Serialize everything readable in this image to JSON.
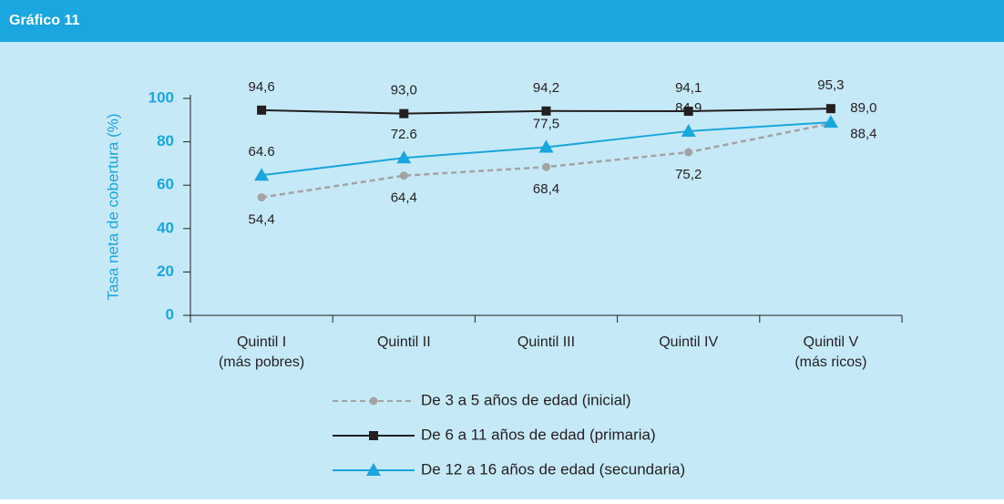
{
  "header": {
    "title": "Gráfico 11"
  },
  "chart_data": {
    "type": "line",
    "y_label": "Tasa neta de cobertura (%)",
    "categories": [
      [
        "Quintil I",
        "(más pobres)"
      ],
      [
        "Quintil II"
      ],
      [
        "Quintil III"
      ],
      [
        "Quintil IV"
      ],
      [
        "Quintil V",
        "(más ricos)"
      ]
    ],
    "ylim": [
      0,
      100
    ],
    "yticks": [
      0,
      20,
      40,
      60,
      80,
      100
    ],
    "series": [
      {
        "name": "De 3 a 5 años de edad (inicial)",
        "color": "#a3a3a3",
        "dash": true,
        "marker": "circle",
        "values": [
          54.4,
          64.4,
          68.4,
          75.2,
          88.4
        ],
        "value_labels": [
          "54,4",
          "64,4",
          "68,4",
          "75,2",
          "88,4"
        ]
      },
      {
        "name": "De 6 a 11 años de edad (primaria)",
        "color": "#231f20",
        "dash": false,
        "marker": "square",
        "values": [
          94.6,
          93.0,
          94.2,
          94.1,
          95.3
        ],
        "value_labels": [
          "94,6",
          "93,0",
          "94,2",
          "94,1",
          "95,3"
        ]
      },
      {
        "name": "De 12 a 16 años de edad (secundaria)",
        "color": "#1aa6de",
        "dash": false,
        "marker": "triangle",
        "values": [
          64.6,
          72.6,
          77.5,
          84.9,
          89.0
        ],
        "value_labels": [
          "64.6",
          "72.6",
          "77,5",
          "84,9",
          "89,0"
        ]
      }
    ]
  }
}
